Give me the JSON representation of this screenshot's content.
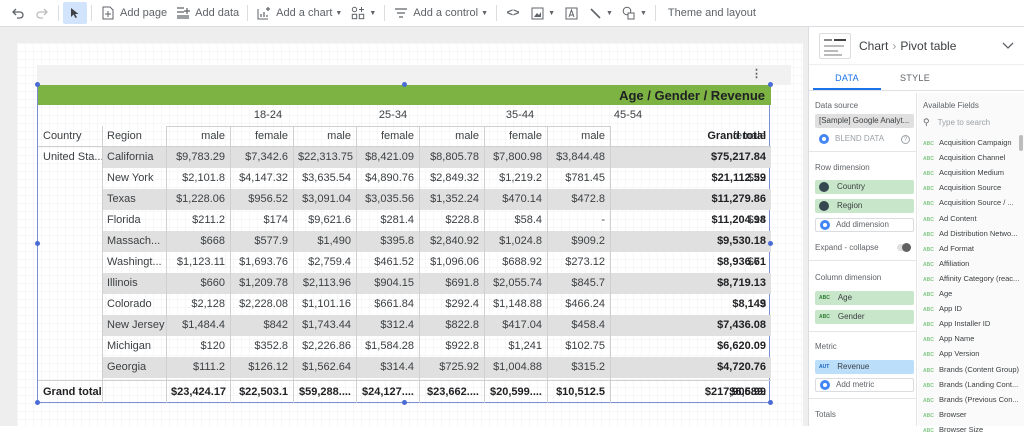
{
  "toolbar": {
    "undo": "undo-icon",
    "redo": "redo-icon",
    "select": "cursor-icon",
    "add_page": "Add page",
    "add_data": "Add data",
    "add_chart": "Add a chart",
    "add_control": "Add a control",
    "theme_layout": "Theme and layout"
  },
  "chart": {
    "title": "Age / Gender / Revenue",
    "row_headers": [
      "Country",
      "Region"
    ],
    "age_groups": [
      "18-24",
      "25-34",
      "35-44",
      "45-54"
    ],
    "gender_headers": [
      "male",
      "female",
      "male",
      "female",
      "male",
      "female",
      "male",
      "female"
    ],
    "grand_total_label": "Grand total",
    "country": "United Sta...",
    "rows": [
      {
        "region": "California",
        "values": [
          "$9,783.29",
          "$7,342.6",
          "$22,313.75",
          "$8,421.09",
          "$8,805.78",
          "$7,800.98",
          "$3,844.48",
          "$2,190."
        ],
        "total": "$75,217.84"
      },
      {
        "region": "New York",
        "values": [
          "$2,101.8",
          "$4,147.32",
          "$3,635.54",
          "$4,890.76",
          "$2,849.32",
          "$1,219.2",
          "$781.45",
          "$22"
        ],
        "total": "$21,112.59"
      },
      {
        "region": "Texas",
        "values": [
          "$1,228.06",
          "$956.52",
          "$3,091.04",
          "$3,035.56",
          "$1,352.24",
          "$470.14",
          "$472.8",
          "$32"
        ],
        "total": "$11,279.86"
      },
      {
        "region": "Florida",
        "values": [
          "$211.2",
          "$174",
          "$9,621.6",
          "$281.4",
          "$228.8",
          "$58.4",
          "-",
          "$14"
        ],
        "total": "$11,204.98"
      },
      {
        "region": "Massach...",
        "values": [
          "$668",
          "$577.9",
          "$1,490",
          "$395.8",
          "$2,840.92",
          "$1,024.8",
          "$909.2",
          "$323."
        ],
        "total": "$9,530.18"
      },
      {
        "region": "Washingt...",
        "values": [
          "$1,123.11",
          "$1,693.76",
          "$2,759.4",
          "$461.52",
          "$1,096.06",
          "$688.92",
          "$273.12",
          "$71"
        ],
        "total": "$8,936.61"
      },
      {
        "region": "Illinois",
        "values": [
          "$660",
          "$1,209.78",
          "$2,113.96",
          "$904.15",
          "$691.8",
          "$2,055.74",
          "$845.7",
          "$"
        ],
        "total": "$8,719.13"
      },
      {
        "region": "Colorado",
        "values": [
          "$2,128",
          "$2,228.08",
          "$1,101.16",
          "$661.84",
          "$292.4",
          "$1,148.88",
          "$466.24",
          "$"
        ],
        "total": "$8,149"
      },
      {
        "region": "New Jersey",
        "values": [
          "$1,484.4",
          "$842",
          "$1,743.44",
          "$312.4",
          "$822.8",
          "$417.04",
          "$458.4",
          "$1,01"
        ],
        "total": "$7,436.08"
      },
      {
        "region": "Michigan",
        "values": [
          "$120",
          "$352.8",
          "$2,226.86",
          "$1,584.28",
          "$922.8",
          "$1,241",
          "$102.75",
          ""
        ],
        "total": "$6,620.09"
      },
      {
        "region": "Georgia",
        "values": [
          "$111.2",
          "$126.12",
          "$1,562.64",
          "$314.4",
          "$725.92",
          "$1,004.88",
          "$315.2",
          "$52"
        ],
        "total": "$4,720.76"
      }
    ],
    "grand_totals": [
      "$23,424.17",
      "$22,503.1",
      "$59,288....",
      "$24,127....",
      "$23,662....",
      "$20,599....",
      "$10,512.5",
      "$6,589."
    ],
    "grand_total_value": "$217,906.99",
    "colors": {
      "title_bar": "#7cb342",
      "shade": "#e0e0e0",
      "selection": "#4a6cd4"
    }
  },
  "panel": {
    "breadcrumb": [
      "Chart",
      "Pivot table"
    ],
    "tabs": [
      "DATA",
      "STYLE"
    ],
    "active_tab": "DATA",
    "data_source_label": "Data source",
    "data_source_value": "[Sample] Google Analyt...",
    "blend_data": "BLEND DATA",
    "row_dimension_label": "Row dimension",
    "row_dimensions": [
      "Country",
      "Region"
    ],
    "add_dimension": "Add dimension",
    "expand_collapse": "Expand - collapse",
    "column_dimension_label": "Column dimension",
    "column_dimensions": [
      "Age",
      "Gender"
    ],
    "metric_label": "Metric",
    "metrics": [
      "Revenue"
    ],
    "add_metric": "Add metric",
    "totals_label": "Totals",
    "available_fields_label": "Available Fields",
    "search_placeholder": "Type to search",
    "fields": [
      "Acquisition Campaign",
      "Acquisition Channel",
      "Acquisition Medium",
      "Acquisition Source",
      "Acquisition Source / ...",
      "Ad Content",
      "Ad Distribution Netwo...",
      "Ad Format",
      "Affiliation",
      "Affinity Category (reac...",
      "Age",
      "App ID",
      "App Installer ID",
      "App Name",
      "App Version",
      "Brands (Content Group)",
      "Brands (Landing Cont...",
      "Brands (Previous Con...",
      "Browser",
      "Browser Size"
    ]
  }
}
